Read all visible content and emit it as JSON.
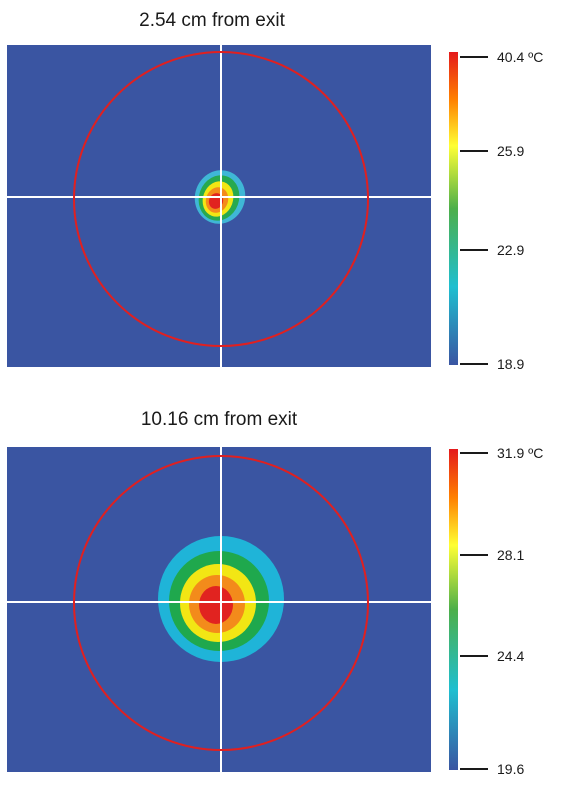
{
  "panels": [
    {
      "title": "2.54 cm from exit",
      "background_color": "#3a55a2",
      "ring_color": "#e02020",
      "crosshair_color": "#ffffff",
      "scale": {
        "max_label": "40.4 ºC",
        "labels": [
          "25.9",
          "22.9",
          "18.9"
        ],
        "max_value": 40.4,
        "min_value": 18.9,
        "colors": [
          "#e41a1c",
          "#ff7f00",
          "#ffff33",
          "#4daf4a",
          "#1fbfd0",
          "#3a55a2"
        ]
      },
      "hotspot": {
        "colors": [
          "#3fb7d6",
          "#27a94f",
          "#f2e614",
          "#f38b1b",
          "#e12320"
        ]
      }
    },
    {
      "title": "10.16 cm from exit",
      "background_color": "#3a55a2",
      "ring_color": "#e02020",
      "crosshair_color": "#ffffff",
      "scale": {
        "max_label": "31.9 ºC",
        "labels": [
          "28.1",
          "24.4",
          "19.6"
        ],
        "max_value": 31.9,
        "min_value": 19.6,
        "colors": [
          "#e41a1c",
          "#ff7f00",
          "#ffff33",
          "#4daf4a",
          "#1fbfd0",
          "#3a55a2"
        ]
      },
      "hotspot": {
        "colors": [
          "#1fb4d8",
          "#1fa84d",
          "#f2e614",
          "#f38b1b",
          "#e12320"
        ]
      }
    }
  ]
}
